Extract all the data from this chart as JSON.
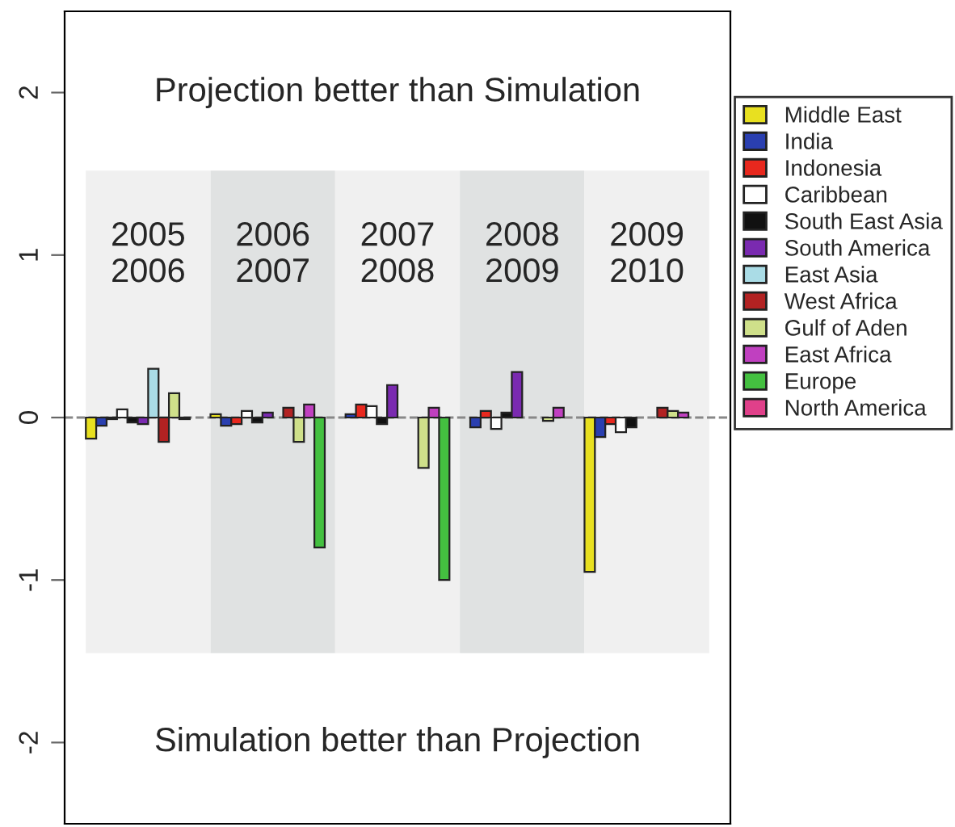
{
  "chart_data": {
    "type": "bar",
    "categories": [
      "2005\n2006",
      "2006\n2007",
      "2007\n2008",
      "2008\n2009",
      "2009\n2010"
    ],
    "series": [
      {
        "name": "Middle East",
        "color": "#e8e020",
        "values": [
          -0.13,
          0.02,
          null,
          null,
          -0.95
        ]
      },
      {
        "name": "India",
        "color": "#2a3fb0",
        "values": [
          -0.05,
          -0.05,
          0.02,
          -0.06,
          -0.12
        ]
      },
      {
        "name": "Indonesia",
        "color": "#e8281e",
        "values": [
          -0.01,
          -0.04,
          0.08,
          0.04,
          -0.04
        ]
      },
      {
        "name": "Caribbean",
        "color": "#ffffff",
        "values": [
          0.05,
          0.04,
          0.07,
          -0.07,
          -0.09
        ]
      },
      {
        "name": "South East Asia",
        "color": "#111111",
        "values": [
          -0.03,
          -0.03,
          -0.04,
          0.03,
          -0.06
        ]
      },
      {
        "name": "South America",
        "color": "#7a2ab0",
        "values": [
          -0.04,
          0.03,
          0.2,
          0.28,
          null
        ]
      },
      {
        "name": "East Asia",
        "color": "#aadce6",
        "values": [
          0.3,
          null,
          null,
          null,
          null
        ]
      },
      {
        "name": "West Africa",
        "color": "#b22222",
        "values": [
          -0.15,
          0.06,
          null,
          null,
          0.06
        ]
      },
      {
        "name": "Gulf of Aden",
        "color": "#cfe08a",
        "values": [
          0.15,
          -0.15,
          -0.31,
          -0.02,
          0.04
        ]
      },
      {
        "name": "East Africa",
        "color": "#c040c0",
        "values": [
          -0.01,
          0.08,
          0.06,
          0.06,
          0.03
        ]
      },
      {
        "name": "Europe",
        "color": "#44c040",
        "values": [
          null,
          -0.8,
          -1.0,
          null,
          null
        ]
      },
      {
        "name": "North America",
        "color": "#e0408a",
        "values": [
          null,
          null,
          null,
          null,
          null
        ]
      }
    ],
    "ylim": [
      -2.5,
      2.5
    ],
    "yticks": [
      -2,
      -1,
      0,
      1,
      2
    ],
    "tick_labels": "y",
    "ref_lines": [
      {
        "axis": "y",
        "value": 0,
        "color": "#888888",
        "line_style": "dashed"
      }
    ],
    "annotations": [
      "Projection better than Simulation",
      "Simulation better than Projection"
    ],
    "legend": "right",
    "grid": false
  }
}
